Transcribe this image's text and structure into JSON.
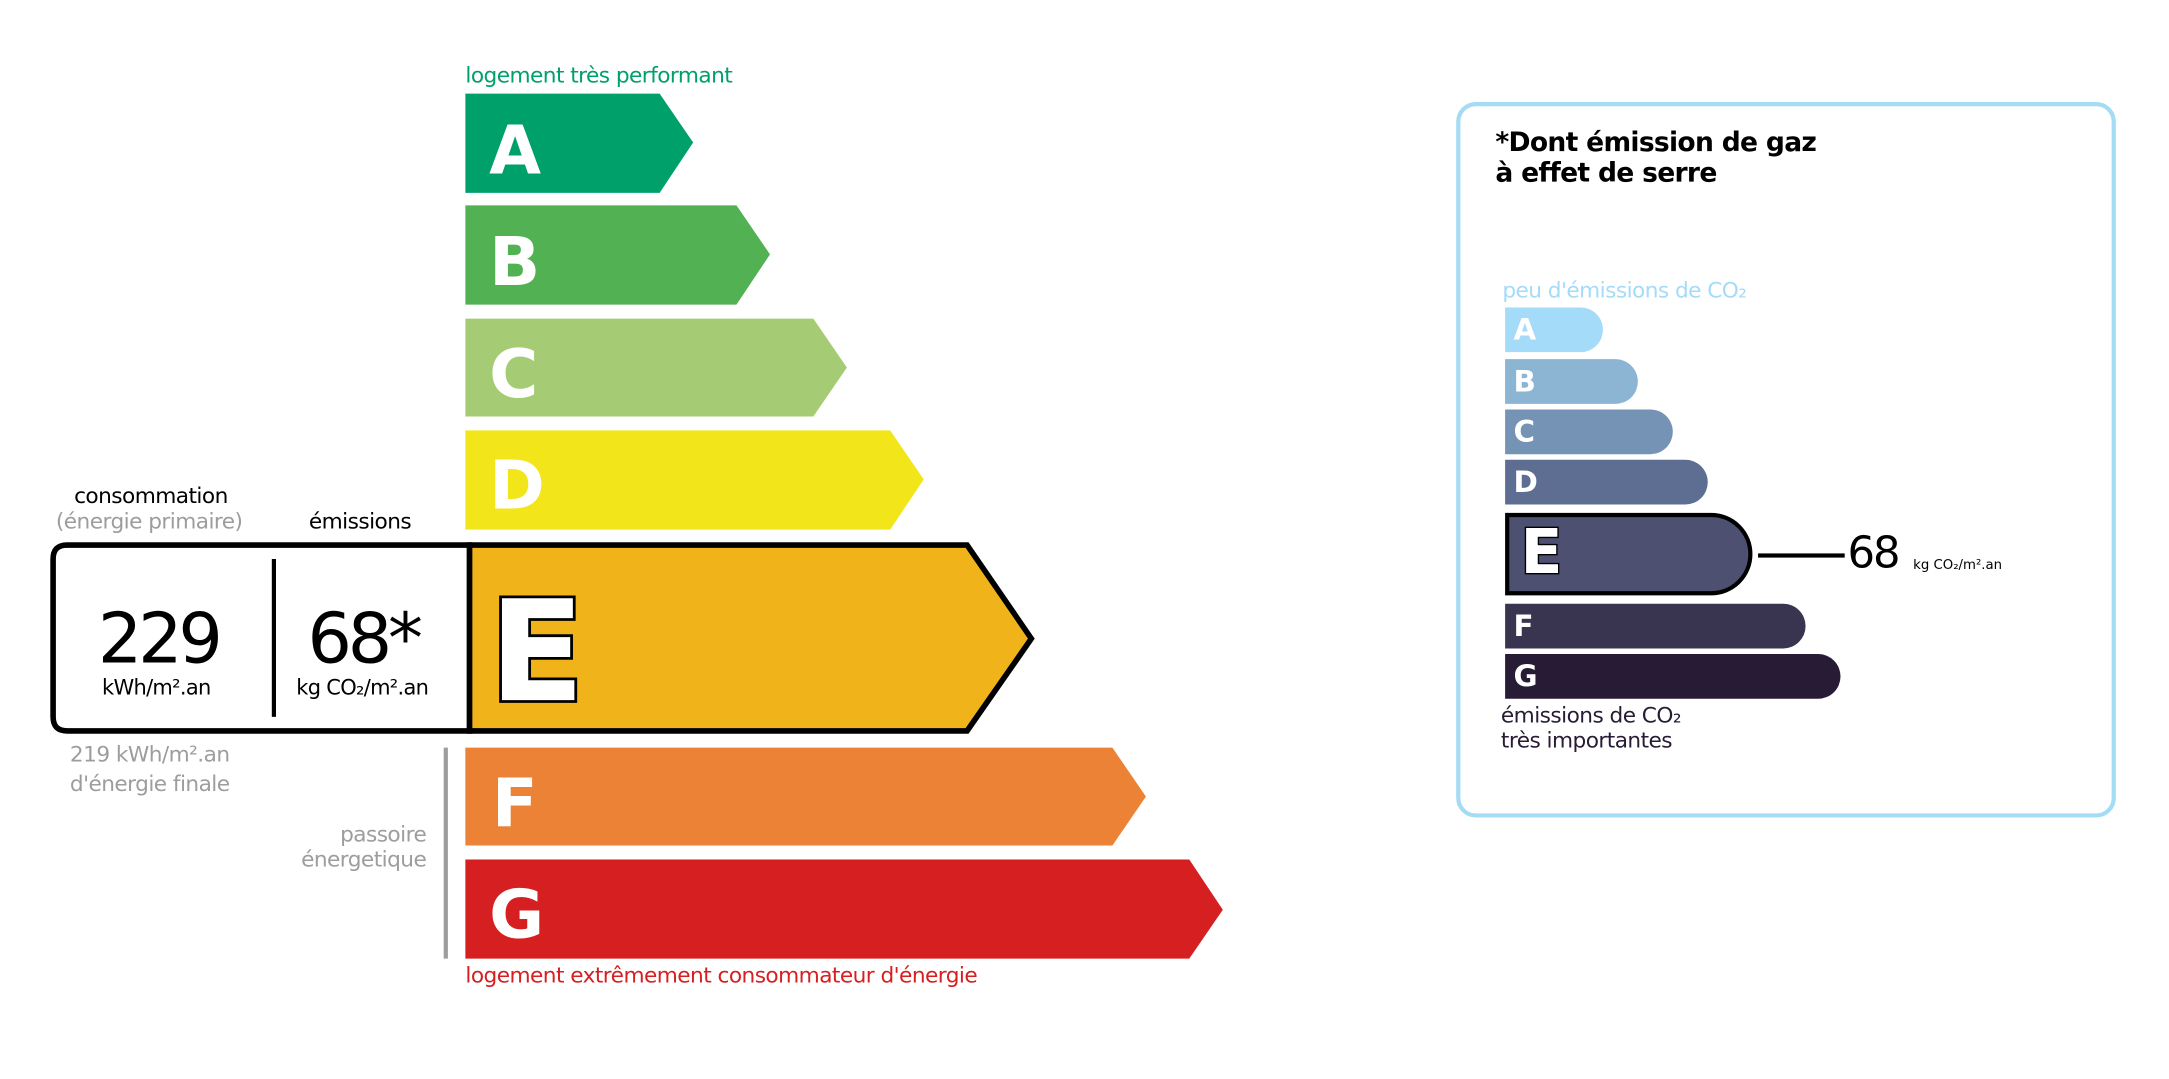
{
  "energy": {
    "top_label": "logement très performant",
    "bottom_label": "logement extrêmement consommateur d'énergie",
    "classes": [
      {
        "letter": "A",
        "color": "#00a06b"
      },
      {
        "letter": "B",
        "color": "#52b153"
      },
      {
        "letter": "C",
        "color": "#a5cc74"
      },
      {
        "letter": "D",
        "color": "#f2e61b"
      },
      {
        "letter": "E",
        "color": "#f0b41a"
      },
      {
        "letter": "F",
        "color": "#eb8235"
      },
      {
        "letter": "G",
        "color": "#d61f20"
      }
    ],
    "current_class": "E",
    "consumption_label": "consommation",
    "consumption_sublabel": "(énergie primaire)",
    "emissions_label": "émissions",
    "consumption_value": "229",
    "consumption_unit": "kWh/m².an",
    "emissions_value": "68*",
    "emissions_unit": "kg CO₂/m².an",
    "final_energy_line1": "219 kWh/m².an",
    "final_energy_line2": "d'énergie finale",
    "passoire_line1": "passoire",
    "passoire_line2": "énergetique"
  },
  "ges": {
    "title_line1": "*Dont émission de gaz",
    "title_line2": "à effet de serre",
    "top_label": "peu d'émissions de CO₂",
    "bottom_line1": "émissions de CO₂",
    "bottom_line2": "très importantes",
    "classes": [
      {
        "letter": "A",
        "color": "#a4dbf8"
      },
      {
        "letter": "B",
        "color": "#8cb4d3"
      },
      {
        "letter": "C",
        "color": "#7593b4"
      },
      {
        "letter": "D",
        "color": "#5e6e92"
      },
      {
        "letter": "E",
        "color": "#4d5070"
      },
      {
        "letter": "F",
        "color": "#393551"
      },
      {
        "letter": "G",
        "color": "#281b35"
      }
    ],
    "current_class": "E",
    "value": "68",
    "unit": "kg CO₂/m².an"
  }
}
